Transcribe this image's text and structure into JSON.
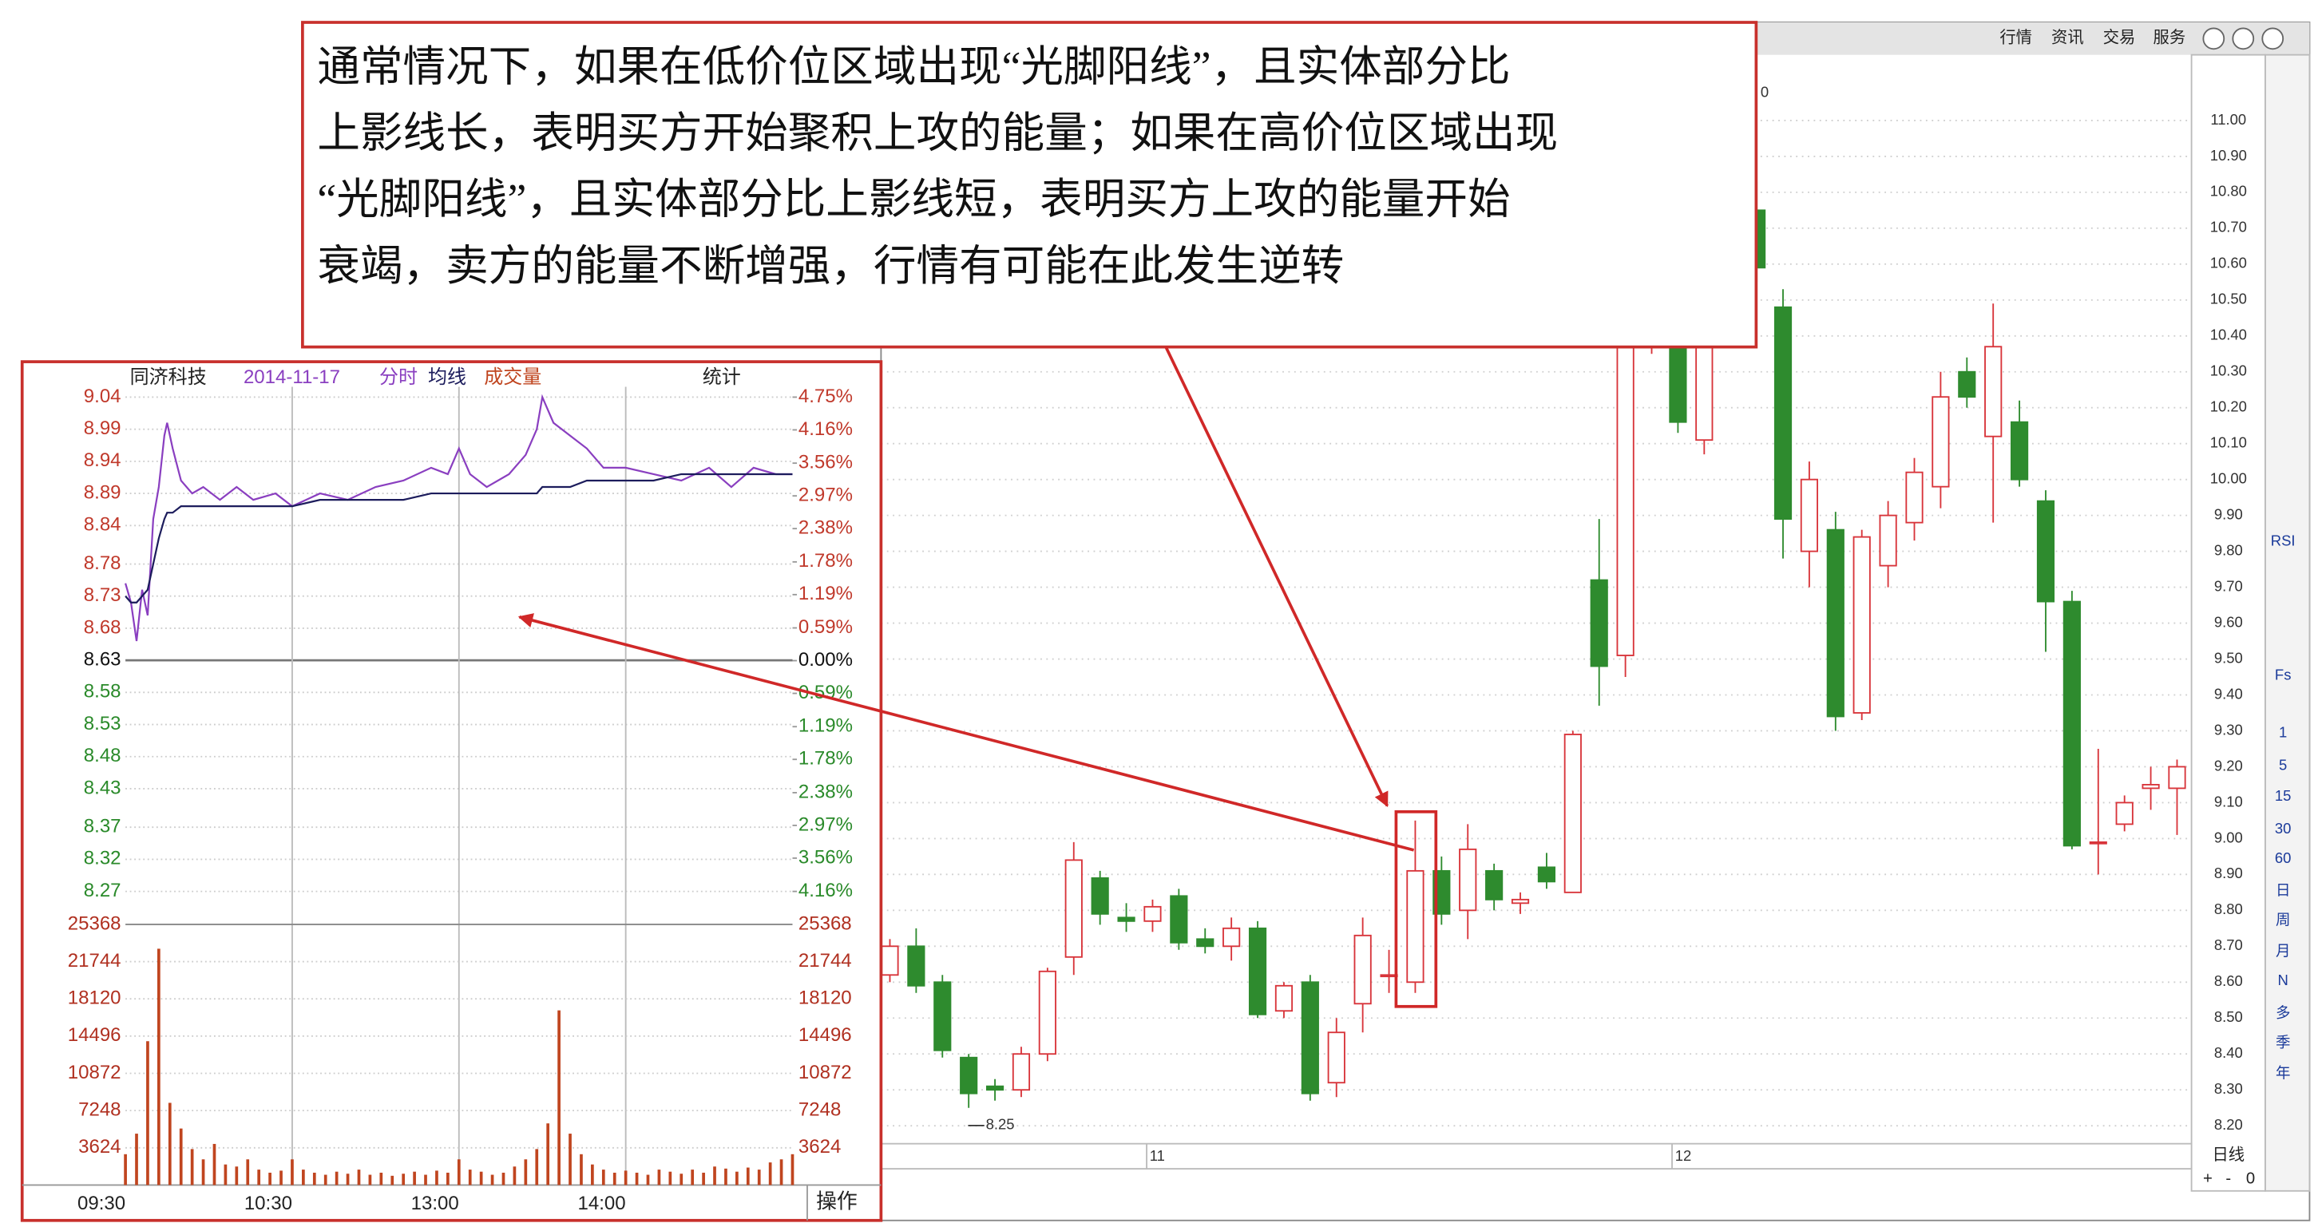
{
  "window": {
    "tabs": [
      "行情",
      "资讯",
      "交易",
      "服务"
    ],
    "corner_mark": "0",
    "sidebar": [
      "RSI",
      "Fs",
      "1",
      "5",
      "15",
      "30",
      "60",
      "日",
      "周",
      "月",
      "N",
      "多",
      "季",
      "年"
    ],
    "period": "日线",
    "zoom": [
      "+",
      "-",
      "0"
    ],
    "action": "操作"
  },
  "annotation": {
    "lines": [
      "通常情况下，如果在低价位区域出现“光脚阳线”，且实体部分比",
      "上影线长，表明买方开始聚积上攻的能量；如果在高价位区域出现",
      "“光脚阳线”，且实体部分比上影线短，表明买方上攻的能量开始",
      "衰竭，卖方的能量不断增强，行情有可能在此发生逆转"
    ]
  },
  "chart_data": [
    {
      "type": "candlestick",
      "up_color": "#d8343a",
      "down_color": "#2e8b2e",
      "grid": true,
      "categories": [
        null,
        null,
        null,
        null,
        null,
        null,
        null,
        null,
        null,
        null,
        "11",
        null,
        null,
        null,
        null,
        null,
        null,
        null,
        null,
        null,
        null,
        null,
        null,
        null,
        null,
        null,
        null,
        null,
        null,
        null,
        "12",
        null,
        null,
        null,
        null,
        null,
        null,
        null,
        null,
        null,
        null,
        null,
        null,
        null,
        null,
        null,
        null,
        null,
        null,
        null
      ],
      "open": [
        8.62,
        8.7,
        8.6,
        8.39,
        8.31,
        8.3,
        8.4,
        8.67,
        8.89,
        8.78,
        8.77,
        8.84,
        8.72,
        8.7,
        8.75,
        8.52,
        8.6,
        8.32,
        8.54,
        8.62,
        8.6,
        8.91,
        8.8,
        8.91,
        8.82,
        8.92,
        8.85,
        9.72,
        9.51,
        10.4,
        10.4,
        10.11,
        10.45,
        10.75,
        10.48,
        9.8,
        9.86,
        9.35,
        9.76,
        9.88,
        9.98,
        10.3,
        10.12,
        10.16,
        9.94,
        9.66,
        8.99,
        9.04,
        9.14,
        9.14
      ],
      "high": [
        8.72,
        8.75,
        8.62,
        8.4,
        8.33,
        8.42,
        8.64,
        8.99,
        8.91,
        8.82,
        8.83,
        8.86,
        8.75,
        8.78,
        8.77,
        8.6,
        8.62,
        8.5,
        8.78,
        8.69,
        9.05,
        8.95,
        9.04,
        8.93,
        8.85,
        8.96,
        9.3,
        9.89,
        10.45,
        10.65,
        10.45,
        10.55,
        10.8,
        10.83,
        10.53,
        10.05,
        9.91,
        9.86,
        9.94,
        10.06,
        10.3,
        10.34,
        10.49,
        10.22,
        9.97,
        9.69,
        9.25,
        9.12,
        9.2,
        9.22
      ],
      "low": [
        8.6,
        8.57,
        8.39,
        8.25,
        8.27,
        8.28,
        8.38,
        8.62,
        8.76,
        8.74,
        8.74,
        8.69,
        8.68,
        8.66,
        8.5,
        8.5,
        8.27,
        8.28,
        8.46,
        8.57,
        8.57,
        8.76,
        8.72,
        8.8,
        8.79,
        8.86,
        8.85,
        9.37,
        9.45,
        10.35,
        10.13,
        10.07,
        10.4,
        10.55,
        9.78,
        9.7,
        9.3,
        9.33,
        9.7,
        9.83,
        9.92,
        10.2,
        9.88,
        9.98,
        9.52,
        8.97,
        8.9,
        9.02,
        9.08,
        9.01
      ],
      "close": [
        8.7,
        8.59,
        8.41,
        8.29,
        8.3,
        8.4,
        8.63,
        8.94,
        8.79,
        8.77,
        8.81,
        8.71,
        8.7,
        8.75,
        8.51,
        8.59,
        8.29,
        8.46,
        8.73,
        8.62,
        8.91,
        8.79,
        8.97,
        8.83,
        8.83,
        8.88,
        9.29,
        9.48,
        10.39,
        10.6,
        10.16,
        10.45,
        10.7,
        10.59,
        9.89,
        10.0,
        9.34,
        9.84,
        9.9,
        10.02,
        10.23,
        10.23,
        10.37,
        10.0,
        9.66,
        8.98,
        8.99,
        9.1,
        9.15,
        9.2
      ],
      "annotations": [
        {
          "label": "8.25",
          "value": 8.25
        }
      ],
      "ylim": [
        8.15,
        11.15
      ],
      "yticks": [
        {
          "value": 11,
          "label": "11.00"
        },
        {
          "value": 10.9,
          "label": "10.90"
        },
        {
          "value": 10.8,
          "label": "10.80"
        },
        {
          "value": 10.7,
          "label": "10.70"
        },
        {
          "value": 10.6,
          "label": "10.60"
        },
        {
          "value": 10.5,
          "label": "10.50"
        },
        {
          "value": 10.4,
          "label": "10.40"
        },
        {
          "value": 10.3,
          "label": "10.30"
        },
        {
          "value": 10.2,
          "label": "10.20"
        },
        {
          "value": 10.1,
          "label": "10.10"
        },
        {
          "value": 10,
          "label": "10.00"
        },
        {
          "value": 9.9,
          "label": "9.90"
        },
        {
          "value": 9.8,
          "label": "9.80"
        },
        {
          "value": 9.7,
          "label": "9.70"
        },
        {
          "value": 9.6,
          "label": "9.60"
        },
        {
          "value": 9.5,
          "label": "9.50"
        },
        {
          "value": 9.4,
          "label": "9.40"
        },
        {
          "value": 9.3,
          "label": "9.30"
        },
        {
          "value": 9.2,
          "label": "9.20"
        },
        {
          "value": 9.1,
          "label": "9.10"
        },
        {
          "value": 9,
          "label": "9.00"
        },
        {
          "value": 8.9,
          "label": "8.90"
        },
        {
          "value": 8.8,
          "label": "8.80"
        },
        {
          "value": 8.7,
          "label": "8.70"
        },
        {
          "value": 8.6,
          "label": "8.60"
        },
        {
          "value": 8.5,
          "label": "8.50"
        },
        {
          "value": 8.4,
          "label": "8.40"
        },
        {
          "value": 8.3,
          "label": "8.30"
        },
        {
          "value": 8.2,
          "label": "8.20"
        }
      ]
    },
    {
      "type": "line",
      "header": {
        "name": "同济科技",
        "date": "2014-11-17",
        "stats": "统计"
      },
      "x": [
        0,
        2,
        4,
        6,
        8,
        10,
        12,
        14,
        15,
        17,
        20,
        24,
        28,
        34,
        40,
        46,
        54,
        60,
        70,
        80,
        90,
        100,
        110,
        116,
        120,
        124,
        130,
        138,
        144,
        148,
        150,
        154,
        160,
        166,
        172,
        180,
        190,
        200,
        210,
        218,
        226,
        234,
        240
      ],
      "series": [
        {
          "name": "分时",
          "color": "#8a3fc0",
          "values": [
            8.75,
            8.72,
            8.66,
            8.74,
            8.7,
            8.85,
            8.9,
            8.98,
            9.0,
            8.96,
            8.91,
            8.89,
            8.9,
            8.88,
            8.9,
            8.88,
            8.89,
            8.87,
            8.89,
            8.88,
            8.9,
            8.91,
            8.93,
            8.92,
            8.96,
            8.92,
            8.9,
            8.92,
            8.95,
            8.99,
            9.04,
            9.0,
            8.98,
            8.96,
            8.93,
            8.93,
            8.92,
            8.91,
            8.93,
            8.9,
            8.93,
            8.92,
            8.92
          ]
        },
        {
          "name": "均线",
          "color": "#1c1c5c",
          "values": [
            8.73,
            8.72,
            8.72,
            8.73,
            8.74,
            8.78,
            8.82,
            8.85,
            8.86,
            8.86,
            8.87,
            8.87,
            8.87,
            8.87,
            8.87,
            8.87,
            8.87,
            8.87,
            8.88,
            8.88,
            8.88,
            8.88,
            8.89,
            8.89,
            8.89,
            8.89,
            8.89,
            8.89,
            8.89,
            8.89,
            8.9,
            8.9,
            8.9,
            8.91,
            8.91,
            8.91,
            8.91,
            8.92,
            8.92,
            8.92,
            8.92,
            8.92,
            8.92
          ]
        }
      ],
      "xlim": [
        0,
        240
      ],
      "xticks": [
        {
          "value": 0,
          "label": "09:30"
        },
        {
          "value": 60,
          "label": "10:30"
        },
        {
          "value": 120,
          "label": "13:00"
        },
        {
          "value": 180,
          "label": "14:00"
        }
      ],
      "ylim": [
        8.27,
        9.04
      ],
      "yticks": [
        9.04,
        8.99,
        8.94,
        8.89,
        8.84,
        8.78,
        8.73,
        8.68,
        8.63,
        8.58,
        8.53,
        8.48,
        8.43,
        8.37,
        8.32,
        8.27
      ],
      "y2lim": [
        -4.16,
        4.75
      ],
      "y2ticks": [
        {
          "value": 4.75,
          "label": "4.75%"
        },
        {
          "value": 4.16,
          "label": "4.16%"
        },
        {
          "value": 3.56,
          "label": "3.56%"
        },
        {
          "value": 2.97,
          "label": "2.97%"
        },
        {
          "value": 2.38,
          "label": "2.38%"
        },
        {
          "value": 1.78,
          "label": "1.78%"
        },
        {
          "value": 1.19,
          "label": "1.19%"
        },
        {
          "value": 0.59,
          "label": "0.59%"
        },
        {
          "value": 0,
          "label": "0.00%"
        },
        {
          "value": -0.59,
          "label": "0.59%"
        },
        {
          "value": -1.19,
          "label": "1.19%"
        },
        {
          "value": -1.78,
          "label": "1.78%"
        },
        {
          "value": -2.38,
          "label": "2.38%"
        },
        {
          "value": -2.97,
          "label": "2.97%"
        },
        {
          "value": -3.56,
          "label": "3.56%"
        },
        {
          "value": -4.16,
          "label": "4.16%"
        }
      ]
    },
    {
      "type": "bar",
      "x": [
        0,
        4,
        8,
        12,
        16,
        20,
        24,
        28,
        32,
        36,
        40,
        44,
        48,
        52,
        56,
        60,
        64,
        68,
        72,
        76,
        80,
        84,
        88,
        92,
        96,
        100,
        104,
        108,
        112,
        116,
        120,
        124,
        128,
        132,
        136,
        140,
        144,
        148,
        152,
        156,
        160,
        164,
        168,
        172,
        176,
        180,
        184,
        188,
        192,
        196,
        200,
        204,
        208,
        212,
        216,
        220,
        224,
        228,
        232,
        236,
        240
      ],
      "series": [
        {
          "name": "成交量",
          "color": "#c0451f",
          "values": [
            3000,
            5000,
            14000,
            23000,
            8000,
            5500,
            3500,
            2500,
            4000,
            2000,
            1800,
            2500,
            1500,
            1200,
            1400,
            2500,
            1500,
            1200,
            1000,
            1300,
            1100,
            1500,
            1000,
            1200,
            900,
            1100,
            1300,
            1000,
            1400,
            1200,
            2500,
            1500,
            1300,
            1000,
            1200,
            1800,
            2500,
            3500,
            6000,
            17000,
            5000,
            3000,
            2000,
            1500,
            1200,
            1400,
            1200,
            1000,
            1500,
            1300,
            1100,
            1500,
            1200,
            1800,
            1600,
            1300,
            1700,
            1500,
            2200,
            2500,
            3000
          ]
        }
      ],
      "xlim": [
        0,
        240
      ],
      "ylim": [
        0,
        27000
      ],
      "yticks": [
        25368,
        21744,
        18120,
        14496,
        10872,
        7248,
        3624
      ]
    }
  ]
}
